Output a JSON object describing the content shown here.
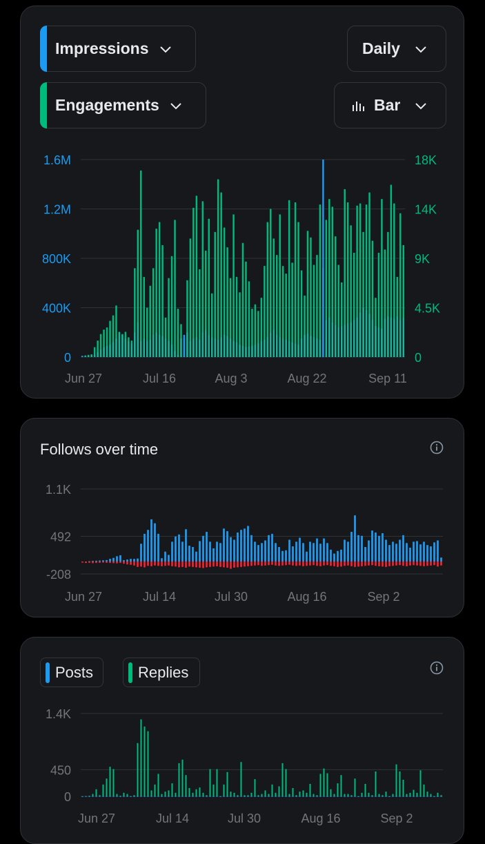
{
  "colors": {
    "impressions": "#1d9bf0",
    "engagements": "#00ba7c",
    "teal": "#14b8a0",
    "follows_pos": "#1d9bf0",
    "follows_neg": "#f4212e",
    "posts": "#1d9bf0",
    "replies": "#00ba7c",
    "axis_text": "#71767b",
    "grid": "#2f3336"
  },
  "controls": {
    "metric1": "Impressions",
    "metric2": "Engagements",
    "interval": "Daily",
    "chart_type": "Bar",
    "metric1_icon": "chevron-down-icon",
    "chart_type_icon": "bar-chart-icon"
  },
  "follows_card": {
    "title": "Follows over time",
    "info_icon": "info-icon"
  },
  "posts_card": {
    "legend_posts": "Posts",
    "legend_replies": "Replies",
    "info_icon": "info-icon"
  },
  "chart_data": [
    {
      "type": "bar",
      "title": "",
      "x_ticks": [
        "Jun 27",
        "Jul 16",
        "Aug 3",
        "Aug 22",
        "Sep 11"
      ],
      "y_left_ticks": [
        "0",
        "400K",
        "800K",
        "1.2M",
        "1.6M"
      ],
      "y_right_ticks": [
        "0",
        "4.5K",
        "9K",
        "14K",
        "18K"
      ],
      "ylim_left": [
        0,
        1600000
      ],
      "ylim_right": [
        0,
        18000
      ],
      "legend": "top",
      "grid": true,
      "series": [
        {
          "name": "Impressions",
          "axis": "left",
          "values": [
            10000,
            10000,
            12000,
            15000,
            20000,
            40000,
            60000,
            80000,
            90000,
            100000,
            120000,
            150000,
            200000,
            180000,
            150000,
            130000,
            110000,
            200000,
            280000,
            130000,
            150000,
            130000,
            140000,
            180000,
            200000,
            180000,
            170000,
            150000,
            130000,
            100000,
            50000,
            20000,
            150000,
            180000,
            200000,
            130000,
            150000,
            160000,
            140000,
            200000,
            220000,
            180000,
            160000,
            150000,
            140000,
            160000,
            180000,
            170000,
            150000,
            130000,
            120000,
            100000,
            90000,
            80000,
            85000,
            90000,
            100000,
            110000,
            130000,
            140000,
            160000,
            200000,
            220000,
            180000,
            160000,
            150000,
            140000,
            130000,
            120000,
            110000,
            100000,
            150000,
            180000,
            190000,
            170000,
            160000,
            150000,
            140000,
            1600000,
            300000,
            320000,
            280000,
            260000,
            240000,
            250000,
            260000,
            270000,
            280000,
            300000,
            320000,
            360000,
            400000,
            380000,
            350000,
            300000,
            250000,
            240000,
            230000,
            310000,
            330000,
            320000,
            310000,
            330000,
            300000,
            320000
          ]
        },
        {
          "name": "Engagements",
          "axis": "right",
          "values": [
            100,
            150,
            200,
            250,
            900,
            1500,
            2100,
            2500,
            2700,
            3300,
            3800,
            4700,
            2300,
            2100,
            2300,
            1800,
            1500,
            8100,
            11600,
            17000,
            7300,
            4500,
            6500,
            8100,
            11700,
            12300,
            10200,
            3600,
            7200,
            9200,
            12500,
            4400,
            3000,
            1700,
            7000,
            10800,
            13600,
            14700,
            8000,
            14200,
            9700,
            12600,
            5800,
            11400,
            16200,
            15000,
            11800,
            10000,
            7200,
            13000,
            7300,
            5900,
            10400,
            8700,
            6900,
            4400,
            4800,
            4200,
            5400,
            8300,
            12300,
            13500,
            10800,
            9300,
            13000,
            8300,
            7600,
            14300,
            8600,
            14100,
            12300,
            7900,
            5600,
            11500,
            10900,
            8400,
            9300,
            13900,
            8100,
            12500,
            14400,
            13700,
            11000,
            8400,
            6800,
            15300,
            14100,
            12000,
            9500,
            13800,
            14000,
            11400,
            13900,
            15000,
            10600,
            5400,
            9500,
            14400,
            9800,
            11400,
            15700,
            14000,
            7300,
            13100,
            10200
          ]
        }
      ]
    },
    {
      "type": "bar",
      "title": "Follows over time",
      "x_ticks": [
        "Jun 27",
        "Jul 14",
        "Jul 30",
        "Aug 16",
        "Sep 2"
      ],
      "y_ticks": [
        "-208",
        "492",
        "1.1K"
      ],
      "ylim": [
        -208,
        1100
      ],
      "grid": true,
      "series": [
        {
          "name": "",
          "values": [
            0,
            0,
            5,
            10,
            12,
            15,
            18,
            22,
            40,
            55,
            80,
            95,
            20,
            30,
            40,
            40,
            45,
            270,
            420,
            480,
            640,
            580,
            420,
            50,
            150,
            100,
            300,
            380,
            410,
            300,
            490,
            240,
            220,
            150,
            310,
            390,
            450,
            300,
            200,
            300,
            280,
            500,
            460,
            370,
            330,
            440,
            480,
            500,
            540,
            400,
            300,
            250,
            280,
            320,
            400,
            420,
            280,
            220,
            160,
            170,
            330,
            230,
            300,
            360,
            280,
            150,
            300,
            280,
            350,
            270,
            350,
            280,
            180,
            120,
            160,
            180,
            330,
            300,
            450,
            700,
            400,
            390,
            220,
            320,
            470,
            440,
            390,
            430,
            330,
            250,
            300,
            270,
            330,
            400,
            280,
            210,
            300,
            310,
            260,
            300,
            250,
            230,
            290,
            320,
            60
          ]
        },
        {
          "name": "",
          "values": [
            -30,
            -40,
            -35,
            -45,
            -40,
            -35,
            -30,
            -35,
            -40,
            -45,
            -50,
            -40,
            -60,
            -80,
            -90,
            -110,
            -150,
            -140,
            -160,
            -120,
            -130,
            -110,
            -120,
            -130,
            -120,
            -110,
            -130,
            -140,
            -160,
            -150,
            -170,
            -140,
            -150,
            -160,
            -170,
            -180,
            -160,
            -150,
            -140,
            -130,
            -150,
            -160,
            -170,
            -200,
            -170,
            -160,
            -150,
            -140,
            -130,
            -120,
            -110,
            -100,
            -120,
            -110,
            -100,
            -90,
            -110,
            -120,
            -110,
            -100,
            -90,
            -110,
            -120,
            -110,
            -130,
            -120,
            -110,
            -100,
            -120,
            -130,
            -110,
            -100,
            -120,
            -130,
            -150,
            -140,
            -120,
            -110,
            -130,
            -150,
            -140,
            -130,
            -120,
            -110,
            -100,
            -120,
            -130,
            -140,
            -150,
            -130,
            -120,
            -110,
            -100,
            -120,
            -130,
            -110,
            -100,
            -110,
            -120,
            -130,
            -120,
            -110,
            -100,
            -140,
            -110
          ]
        }
      ]
    },
    {
      "type": "bar",
      "title": "",
      "legend": "top-left",
      "x_ticks": [
        "Jun 27",
        "Jul 14",
        "Jul 30",
        "Aug 16",
        "Sep 2"
      ],
      "y_ticks": [
        "0",
        "450",
        "1.4K"
      ],
      "ylim": [
        0,
        1400
      ],
      "grid": true,
      "series": [
        {
          "name": "Posts",
          "values": [
            2,
            2,
            2,
            3,
            3,
            3,
            2,
            2,
            3,
            2,
            3,
            2,
            2,
            3,
            3,
            2,
            2,
            3,
            2,
            2,
            3,
            2,
            3,
            2,
            3,
            2,
            2,
            3,
            2,
            3,
            2,
            2,
            3,
            2,
            3,
            2,
            3,
            2,
            2,
            3,
            2,
            3,
            2,
            2,
            3,
            2,
            3,
            2,
            2,
            3,
            2,
            3,
            2,
            2,
            3,
            2,
            3,
            2,
            3,
            2,
            2,
            3,
            2,
            3,
            2,
            3,
            2,
            2,
            3,
            2,
            3,
            2,
            2,
            3,
            2,
            3,
            2,
            2,
            3,
            2,
            3,
            2,
            2,
            3,
            2,
            3,
            2,
            2,
            3,
            2,
            3,
            2,
            2,
            3,
            2,
            3,
            2,
            2,
            3,
            2,
            3,
            2,
            3,
            2,
            2
          ]
        },
        {
          "name": "Replies",
          "values": [
            0,
            5,
            10,
            40,
            120,
            20,
            200,
            300,
            500,
            460,
            40,
            10,
            60,
            40,
            0,
            20,
            900,
            1300,
            1180,
            1100,
            100,
            200,
            380,
            40,
            80,
            100,
            220,
            60,
            560,
            620,
            360,
            140,
            60,
            120,
            150,
            60,
            20,
            460,
            200,
            460,
            0,
            200,
            410,
            80,
            60,
            20,
            580,
            20,
            20,
            60,
            290,
            20,
            40,
            100,
            40,
            200,
            60,
            170,
            560,
            460,
            40,
            140,
            20,
            80,
            100,
            60,
            210,
            40,
            20,
            380,
            470,
            390,
            120,
            40,
            220,
            360,
            40,
            40,
            20,
            300,
            0,
            60,
            210,
            60,
            20,
            420,
            40,
            20,
            80,
            0,
            40,
            540,
            420,
            280,
            40,
            60,
            110,
            60,
            440,
            200,
            80,
            40,
            0,
            60,
            20
          ]
        }
      ]
    }
  ]
}
